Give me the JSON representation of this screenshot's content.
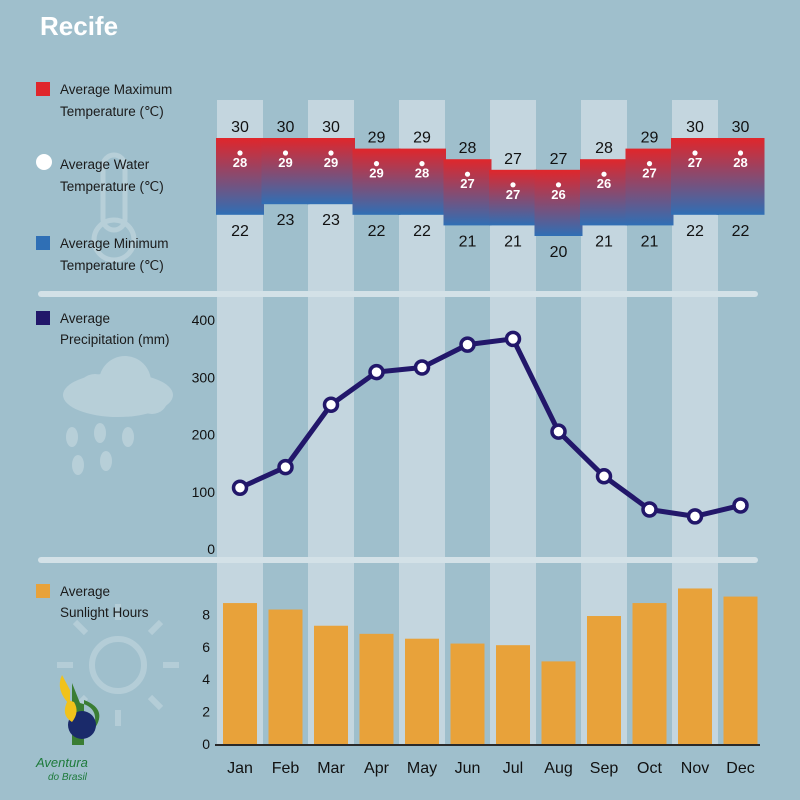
{
  "title": "Recife",
  "legend": {
    "max_temp": [
      "Average Maximum",
      "Temperature (℃)"
    ],
    "water_temp": [
      "Average Water",
      "Temperature (℃)"
    ],
    "min_temp": [
      "Average Minimum",
      "Temperature (℃)"
    ],
    "precipitation": [
      "Average",
      "Precipitation (mm)"
    ],
    "sunlight": [
      "Average",
      "Sunlight Hours"
    ]
  },
  "logo": {
    "line1": "Aventura",
    "line2": "do Brasil"
  },
  "colors": {
    "background": "#9fbfcc",
    "column_band": "#c4d6df",
    "max_temp": "#e0262b",
    "min_temp": "#2f6fb5",
    "precip_line": "#22176a",
    "sunlight_bar": "#e8a23a",
    "divider": "#d3e1e7"
  },
  "chart_data": [
    {
      "type": "range-bar",
      "months": [
        "Jan",
        "Feb",
        "Mar",
        "Apr",
        "May",
        "Jun",
        "Jul",
        "Aug",
        "Sep",
        "Oct",
        "Nov",
        "Dec"
      ],
      "series": [
        {
          "name": "Average Maximum Temperature (℃)",
          "values": [
            30,
            30,
            30,
            29,
            29,
            28,
            27,
            27,
            28,
            29,
            30,
            30
          ]
        },
        {
          "name": "Average Water Temperature (℃)",
          "values": [
            28,
            29,
            29,
            29,
            28,
            27,
            27,
            26,
            26,
            27,
            27,
            28
          ]
        },
        {
          "name": "Average Minimum Temperature (℃)",
          "values": [
            22,
            23,
            23,
            22,
            22,
            21,
            21,
            20,
            21,
            21,
            22,
            22
          ]
        }
      ]
    },
    {
      "type": "line",
      "categories": [
        "Jan",
        "Feb",
        "Mar",
        "Apr",
        "May",
        "Jun",
        "Jul",
        "Aug",
        "Sep",
        "Oct",
        "Nov",
        "Dec"
      ],
      "series": [
        {
          "name": "Average Precipitation (mm)",
          "values": [
            107,
            143,
            252,
            309,
            317,
            357,
            367,
            205,
            127,
            69,
            57,
            76
          ]
        }
      ],
      "yticks": [
        0,
        100,
        200,
        300,
        400
      ],
      "ylim": [
        0,
        400
      ]
    },
    {
      "type": "bar",
      "categories": [
        "Jan",
        "Feb",
        "Mar",
        "Apr",
        "May",
        "Jun",
        "Jul",
        "Aug",
        "Sep",
        "Oct",
        "Nov",
        "Dec"
      ],
      "series": [
        {
          "name": "Average Sunlight Hours",
          "values": [
            8.7,
            8.3,
            7.3,
            6.8,
            6.5,
            6.2,
            6.1,
            5.1,
            7.9,
            8.7,
            9.6,
            9.1
          ]
        }
      ],
      "yticks": [
        0,
        2,
        4,
        6,
        8
      ],
      "ylim": [
        0,
        10
      ]
    }
  ]
}
